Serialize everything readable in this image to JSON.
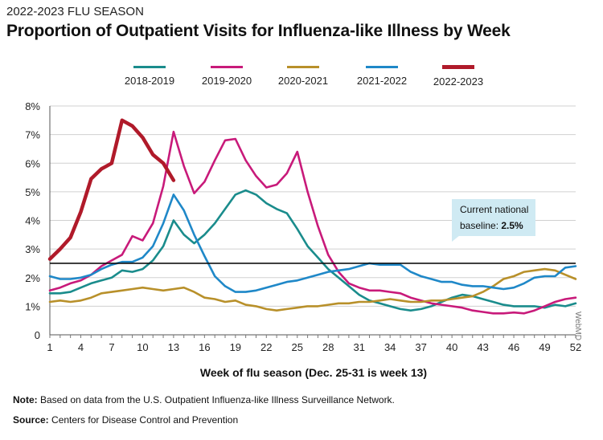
{
  "header": {
    "kicker": "2022-2023 FLU SEASON",
    "title": "Proportion of Outpatient Visits for Influenza-like Illness by Week"
  },
  "callout": {
    "line1": "Current national",
    "line2_prefix": "baseline: ",
    "line2_value": "2.5%"
  },
  "footer": {
    "note_label": "Note:",
    "note_text": " Based on data from the U.S. Outpatient Influenza-like Illness Surveillance Network.",
    "source_label": "Source:",
    "source_text": " Centers for Disease Control and Prevention"
  },
  "brand": "WebMD",
  "chart_data": {
    "type": "line",
    "xlabel": "Week of flu season (Dec. 25-31 is week 13)",
    "ylabel": "",
    "x_ticks": [
      1,
      4,
      7,
      10,
      13,
      16,
      19,
      22,
      25,
      28,
      31,
      34,
      37,
      40,
      43,
      46,
      49,
      52
    ],
    "y_ticks": [
      0,
      1,
      2,
      3,
      4,
      5,
      6,
      7,
      8
    ],
    "y_tick_labels": [
      "0",
      "1%",
      "2%",
      "3%",
      "4%",
      "5%",
      "6%",
      "7%",
      "8%"
    ],
    "xlim": [
      1,
      52
    ],
    "ylim": [
      0,
      8
    ],
    "baseline": 2.5,
    "series": [
      {
        "name": "2018-2019",
        "color": "#1a8c8c",
        "width": 2.6,
        "x": [
          1,
          2,
          3,
          4,
          5,
          6,
          7,
          8,
          9,
          10,
          11,
          12,
          13,
          14,
          15,
          16,
          17,
          18,
          19,
          20,
          21,
          22,
          23,
          24,
          25,
          26,
          27,
          28,
          29,
          30,
          31,
          32,
          33,
          34,
          35,
          36,
          37,
          38,
          39,
          40,
          41,
          42,
          43,
          44,
          45,
          46,
          47,
          48,
          49,
          50,
          51,
          52
        ],
        "values": [
          1.45,
          1.45,
          1.5,
          1.65,
          1.8,
          1.9,
          2.0,
          2.25,
          2.2,
          2.3,
          2.6,
          3.1,
          4.0,
          3.5,
          3.2,
          3.5,
          3.9,
          4.4,
          4.9,
          5.05,
          4.9,
          4.6,
          4.4,
          4.25,
          3.7,
          3.1,
          2.7,
          2.3,
          2.0,
          1.7,
          1.4,
          1.2,
          1.1,
          1.0,
          0.9,
          0.85,
          0.9,
          1.0,
          1.15,
          1.3,
          1.4,
          1.35,
          1.25,
          1.15,
          1.05,
          1.0,
          1.0,
          1.0,
          0.95,
          1.05,
          1.0,
          1.1
        ]
      },
      {
        "name": "2019-2020",
        "color": "#c81a7a",
        "width": 2.6,
        "x": [
          1,
          2,
          3,
          4,
          5,
          6,
          7,
          8,
          9,
          10,
          11,
          12,
          13,
          14,
          15,
          16,
          17,
          18,
          19,
          20,
          21,
          22,
          23,
          24,
          25,
          26,
          27,
          28,
          29,
          30,
          31,
          32,
          33,
          34,
          35,
          36,
          37,
          38,
          39,
          40,
          41,
          42,
          43,
          44,
          45,
          46,
          47,
          48,
          49,
          50,
          51,
          52
        ],
        "values": [
          1.55,
          1.65,
          1.8,
          1.9,
          2.1,
          2.4,
          2.6,
          2.8,
          3.45,
          3.3,
          3.9,
          5.2,
          7.1,
          5.9,
          4.95,
          5.35,
          6.1,
          6.8,
          6.85,
          6.1,
          5.55,
          5.15,
          5.25,
          5.65,
          6.4,
          5.0,
          3.8,
          2.8,
          2.2,
          1.8,
          1.65,
          1.55,
          1.55,
          1.5,
          1.45,
          1.3,
          1.2,
          1.1,
          1.05,
          1.0,
          0.95,
          0.85,
          0.8,
          0.75,
          0.75,
          0.78,
          0.75,
          0.85,
          1.0,
          1.15,
          1.25,
          1.3
        ]
      },
      {
        "name": "2020-2021",
        "color": "#b8902a",
        "width": 2.6,
        "x": [
          1,
          2,
          3,
          4,
          5,
          6,
          7,
          8,
          9,
          10,
          11,
          12,
          13,
          14,
          15,
          16,
          17,
          18,
          19,
          20,
          21,
          22,
          23,
          24,
          25,
          26,
          27,
          28,
          29,
          30,
          31,
          32,
          33,
          34,
          35,
          36,
          37,
          38,
          39,
          40,
          41,
          42,
          43,
          44,
          45,
          46,
          47,
          48,
          49,
          50,
          51,
          52
        ],
        "values": [
          1.15,
          1.2,
          1.15,
          1.2,
          1.3,
          1.45,
          1.5,
          1.55,
          1.6,
          1.65,
          1.6,
          1.55,
          1.6,
          1.65,
          1.5,
          1.3,
          1.25,
          1.15,
          1.2,
          1.05,
          1.0,
          0.9,
          0.85,
          0.9,
          0.95,
          1.0,
          1.0,
          1.05,
          1.1,
          1.1,
          1.15,
          1.15,
          1.2,
          1.25,
          1.2,
          1.15,
          1.15,
          1.2,
          1.2,
          1.25,
          1.3,
          1.35,
          1.5,
          1.7,
          1.95,
          2.05,
          2.2,
          2.25,
          2.3,
          2.25,
          2.1,
          1.95
        ]
      },
      {
        "name": "2021-2022",
        "color": "#1f88c8",
        "width": 2.6,
        "x": [
          1,
          2,
          3,
          4,
          5,
          6,
          7,
          8,
          9,
          10,
          11,
          12,
          13,
          14,
          15,
          16,
          17,
          18,
          19,
          20,
          21,
          22,
          23,
          24,
          25,
          26,
          27,
          28,
          29,
          30,
          31,
          32,
          33,
          34,
          35,
          36,
          37,
          38,
          39,
          40,
          41,
          42,
          43,
          44,
          45,
          46,
          47,
          48,
          49,
          50,
          51,
          52
        ],
        "values": [
          2.05,
          1.95,
          1.95,
          2.0,
          2.1,
          2.3,
          2.45,
          2.55,
          2.55,
          2.7,
          3.1,
          3.9,
          4.9,
          4.35,
          3.5,
          2.75,
          2.05,
          1.7,
          1.5,
          1.5,
          1.55,
          1.65,
          1.75,
          1.85,
          1.9,
          2.0,
          2.1,
          2.2,
          2.25,
          2.3,
          2.4,
          2.5,
          2.45,
          2.45,
          2.45,
          2.2,
          2.05,
          1.95,
          1.85,
          1.85,
          1.75,
          1.7,
          1.7,
          1.65,
          1.6,
          1.65,
          1.8,
          2.0,
          2.05,
          2.05,
          2.35,
          2.4
        ]
      },
      {
        "name": "2022-2023",
        "color": "#b01a2a",
        "width": 4.5,
        "x": [
          1,
          2,
          3,
          4,
          5,
          6,
          7,
          8,
          9,
          10,
          11,
          12,
          13
        ],
        "values": [
          2.65,
          3.0,
          3.4,
          4.3,
          5.45,
          5.8,
          6.0,
          7.5,
          7.3,
          6.9,
          6.3,
          6.0,
          5.4
        ]
      }
    ]
  }
}
